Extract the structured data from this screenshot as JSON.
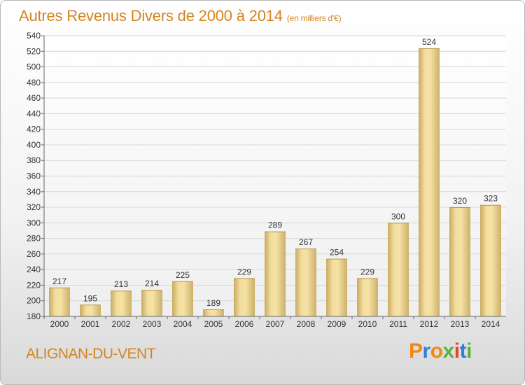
{
  "header": {
    "title": "Autres Revenus Divers de 2000 à 2014",
    "subtitle": "(en milliers d'€)"
  },
  "footer": {
    "place": "ALIGNAN-DU-VENT",
    "logo": "Proxiti"
  },
  "colors": {
    "title": "#d5841f",
    "bar_light": "#f5e2a4",
    "bar_dark": "#c9aa60",
    "logo_letters": [
      "#f08a12",
      "#2f7fd8",
      "#f08a12",
      "#55b53a",
      "#e8452c",
      "#2f7fd8",
      "#55b53a"
    ]
  },
  "chart_data": {
    "type": "bar",
    "categories": [
      "2000",
      "2001",
      "2002",
      "2003",
      "2004",
      "2005",
      "2006",
      "2007",
      "2008",
      "2009",
      "2010",
      "2011",
      "2012",
      "2013",
      "2014"
    ],
    "values": [
      217,
      195,
      213,
      214,
      225,
      189,
      229,
      289,
      267,
      254,
      229,
      300,
      524,
      320,
      323
    ],
    "title": "Autres Revenus Divers de 2000 à 2014",
    "subtitle": "(en milliers d'€)",
    "ylim": [
      180,
      540
    ],
    "yticks": [
      180,
      200,
      220,
      240,
      260,
      280,
      300,
      320,
      340,
      360,
      380,
      400,
      420,
      440,
      460,
      480,
      500,
      520,
      540
    ],
    "grid": true,
    "legend": "none"
  }
}
